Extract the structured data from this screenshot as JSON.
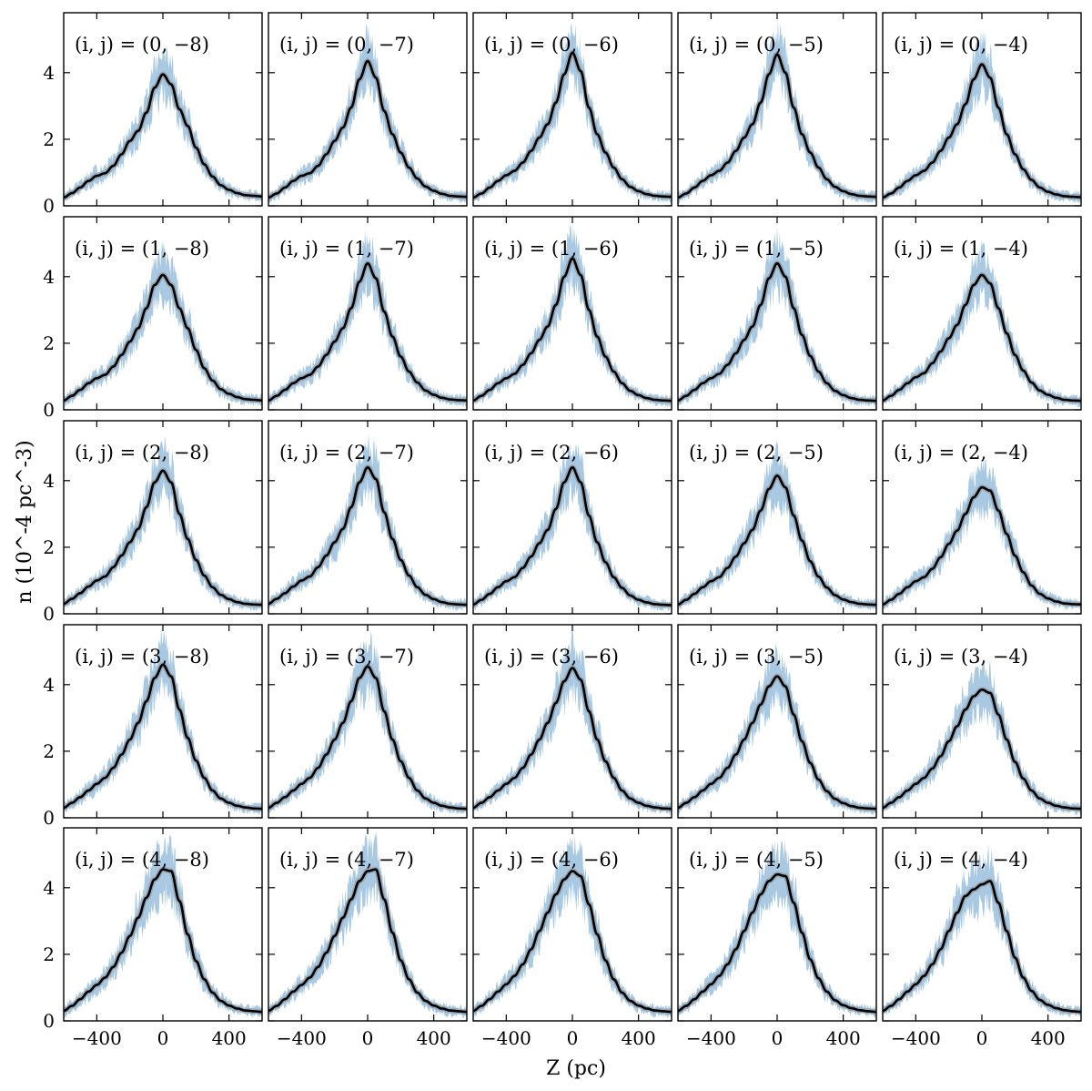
{
  "chart_data": {
    "type": "line",
    "layout": "5x5 grid of panels sharing axes",
    "xlabel": "Z (pc)",
    "ylabel": "n (10^-4 pc^-3)",
    "xlim": [
      -600,
      600
    ],
    "ylim": [
      0,
      5.8
    ],
    "xticks": [
      -400,
      0,
      400
    ],
    "yticks": [
      0,
      2,
      4
    ],
    "x_tick_labels": [
      "−400",
      "0",
      "400"
    ],
    "y_tick_labels": [
      "0",
      "2",
      "4"
    ],
    "colors": {
      "band": "#a9c9e3",
      "line": "#000000",
      "line_halo": "#7f7f7f"
    },
    "x": [
      -600,
      -550,
      -500,
      -450,
      -400,
      -350,
      -300,
      -250,
      -200,
      -150,
      -100,
      -50,
      0,
      50,
      100,
      150,
      200,
      250,
      300,
      350,
      400,
      450,
      500,
      550,
      600
    ],
    "panels": [
      {
        "label": "(i, j) = (0, −8)",
        "values": [
          0.25,
          0.38,
          0.55,
          0.75,
          0.9,
          0.98,
          1.2,
          1.55,
          1.95,
          2.25,
          2.8,
          3.55,
          3.95,
          3.65,
          2.9,
          2.4,
          1.75,
          1.25,
          0.88,
          0.62,
          0.48,
          0.38,
          0.32,
          0.3,
          0.28
        ]
      },
      {
        "label": "(i, j) = (0, −7)",
        "values": [
          0.25,
          0.37,
          0.55,
          0.75,
          0.9,
          0.98,
          1.2,
          1.55,
          1.95,
          2.35,
          2.95,
          3.8,
          4.35,
          3.85,
          2.85,
          2.15,
          1.6,
          1.15,
          0.82,
          0.58,
          0.45,
          0.36,
          0.3,
          0.28,
          0.27
        ]
      },
      {
        "label": "(i, j) = (0, −6)",
        "values": [
          0.25,
          0.37,
          0.55,
          0.75,
          0.92,
          1.05,
          1.3,
          1.65,
          2.05,
          2.45,
          3.1,
          3.95,
          4.6,
          4.05,
          2.95,
          2.15,
          1.6,
          1.15,
          0.8,
          0.57,
          0.44,
          0.35,
          0.3,
          0.28,
          0.27
        ]
      },
      {
        "label": "(i, j) = (0, −5)",
        "values": [
          0.25,
          0.37,
          0.55,
          0.75,
          0.92,
          1.05,
          1.3,
          1.65,
          2.05,
          2.45,
          3.1,
          3.95,
          4.55,
          4.0,
          2.95,
          2.15,
          1.6,
          1.15,
          0.8,
          0.57,
          0.44,
          0.35,
          0.3,
          0.28,
          0.27
        ]
      },
      {
        "label": "(i, j) = (0, −4)",
        "values": [
          0.25,
          0.37,
          0.55,
          0.75,
          0.92,
          1.05,
          1.3,
          1.65,
          2.05,
          2.45,
          3.05,
          3.8,
          4.25,
          3.85,
          2.95,
          2.15,
          1.55,
          1.1,
          0.78,
          0.55,
          0.42,
          0.34,
          0.29,
          0.27,
          0.26
        ]
      },
      {
        "label": "(i, j) = (1, −8)",
        "values": [
          0.28,
          0.42,
          0.6,
          0.8,
          0.95,
          1.05,
          1.3,
          1.65,
          2.05,
          2.45,
          3.05,
          3.75,
          4.05,
          3.75,
          3.05,
          2.45,
          1.8,
          1.25,
          0.88,
          0.62,
          0.48,
          0.38,
          0.32,
          0.3,
          0.28
        ]
      },
      {
        "label": "(i, j) = (1, −7)",
        "values": [
          0.28,
          0.42,
          0.6,
          0.8,
          0.95,
          1.05,
          1.3,
          1.65,
          2.05,
          2.45,
          3.05,
          3.85,
          4.4,
          3.95,
          2.95,
          2.2,
          1.6,
          1.15,
          0.82,
          0.58,
          0.45,
          0.36,
          0.31,
          0.29,
          0.28
        ]
      },
      {
        "label": "(i, j) = (1, −6)",
        "values": [
          0.28,
          0.42,
          0.6,
          0.8,
          0.95,
          1.08,
          1.35,
          1.7,
          2.1,
          2.5,
          3.15,
          4.0,
          4.55,
          4.05,
          3.0,
          2.2,
          1.6,
          1.15,
          0.8,
          0.57,
          0.44,
          0.35,
          0.3,
          0.28,
          0.27
        ]
      },
      {
        "label": "(i, j) = (1, −5)",
        "values": [
          0.28,
          0.42,
          0.6,
          0.8,
          0.95,
          1.08,
          1.35,
          1.7,
          2.1,
          2.5,
          3.15,
          3.95,
          4.4,
          4.0,
          3.05,
          2.25,
          1.62,
          1.15,
          0.8,
          0.57,
          0.44,
          0.35,
          0.3,
          0.28,
          0.27
        ]
      },
      {
        "label": "(i, j) = (1, −4)",
        "values": [
          0.28,
          0.42,
          0.6,
          0.8,
          0.98,
          1.1,
          1.4,
          1.75,
          2.15,
          2.55,
          3.15,
          3.75,
          4.05,
          3.8,
          3.05,
          2.3,
          1.65,
          1.18,
          0.82,
          0.58,
          0.45,
          0.36,
          0.3,
          0.28,
          0.27
        ]
      },
      {
        "label": "(i, j) = (2, −8)",
        "values": [
          0.3,
          0.45,
          0.62,
          0.82,
          1.0,
          1.12,
          1.4,
          1.75,
          2.15,
          2.55,
          3.2,
          3.95,
          4.3,
          3.95,
          3.0,
          2.25,
          1.62,
          1.15,
          0.8,
          0.57,
          0.44,
          0.35,
          0.3,
          0.28,
          0.27
        ]
      },
      {
        "label": "(i, j) = (2, −7)",
        "values": [
          0.3,
          0.45,
          0.62,
          0.82,
          1.0,
          1.12,
          1.4,
          1.75,
          2.15,
          2.55,
          3.2,
          3.95,
          4.4,
          4.05,
          3.05,
          2.25,
          1.62,
          1.15,
          0.8,
          0.57,
          0.44,
          0.35,
          0.3,
          0.28,
          0.27
        ]
      },
      {
        "label": "(i, j) = (2, −6)",
        "values": [
          0.28,
          0.42,
          0.6,
          0.8,
          0.98,
          1.1,
          1.38,
          1.72,
          2.12,
          2.52,
          3.15,
          3.95,
          4.4,
          3.95,
          2.95,
          2.15,
          1.55,
          1.1,
          0.78,
          0.55,
          0.42,
          0.34,
          0.29,
          0.27,
          0.26
        ]
      },
      {
        "label": "(i, j) = (2, −5)",
        "values": [
          0.28,
          0.42,
          0.6,
          0.8,
          0.98,
          1.1,
          1.38,
          1.72,
          2.12,
          2.52,
          3.1,
          3.75,
          4.15,
          3.8,
          2.95,
          2.2,
          1.58,
          1.12,
          0.79,
          0.56,
          0.43,
          0.35,
          0.3,
          0.28,
          0.27
        ]
      },
      {
        "label": "(i, j) = (2, −4)",
        "values": [
          0.28,
          0.42,
          0.6,
          0.8,
          0.98,
          1.1,
          1.35,
          1.7,
          2.1,
          2.5,
          3.0,
          3.5,
          3.8,
          3.7,
          3.1,
          2.4,
          1.75,
          1.25,
          0.85,
          0.6,
          0.46,
          0.37,
          0.31,
          0.29,
          0.28
        ]
      },
      {
        "label": "(i, j) = (3, −8)",
        "values": [
          0.3,
          0.45,
          0.62,
          0.82,
          1.02,
          1.2,
          1.5,
          1.9,
          2.35,
          2.85,
          3.5,
          4.2,
          4.6,
          4.25,
          3.25,
          2.4,
          1.72,
          1.2,
          0.82,
          0.58,
          0.45,
          0.36,
          0.31,
          0.28,
          0.27
        ]
      },
      {
        "label": "(i, j) = (3, −7)",
        "values": [
          0.3,
          0.45,
          0.62,
          0.82,
          1.02,
          1.2,
          1.5,
          1.9,
          2.35,
          2.85,
          3.5,
          4.2,
          4.55,
          4.2,
          3.2,
          2.35,
          1.7,
          1.2,
          0.82,
          0.58,
          0.45,
          0.36,
          0.31,
          0.28,
          0.27
        ]
      },
      {
        "label": "(i, j) = (3, −6)",
        "values": [
          0.3,
          0.45,
          0.62,
          0.82,
          1.02,
          1.2,
          1.5,
          1.9,
          2.35,
          2.85,
          3.45,
          4.1,
          4.5,
          4.15,
          3.2,
          2.35,
          1.7,
          1.2,
          0.82,
          0.58,
          0.45,
          0.36,
          0.31,
          0.28,
          0.27
        ]
      },
      {
        "label": "(i, j) = (3, −5)",
        "values": [
          0.3,
          0.45,
          0.62,
          0.82,
          1.02,
          1.2,
          1.5,
          1.9,
          2.35,
          2.85,
          3.4,
          3.95,
          4.25,
          3.95,
          3.1,
          2.3,
          1.65,
          1.15,
          0.8,
          0.57,
          0.44,
          0.35,
          0.3,
          0.28,
          0.27
        ]
      },
      {
        "label": "(i, j) = (3, −4)",
        "values": [
          0.3,
          0.45,
          0.62,
          0.82,
          1.02,
          1.2,
          1.48,
          1.85,
          2.3,
          2.75,
          3.25,
          3.65,
          3.85,
          3.75,
          3.1,
          2.35,
          1.68,
          1.18,
          0.82,
          0.58,
          0.45,
          0.36,
          0.31,
          0.28,
          0.27
        ]
      },
      {
        "label": "(i, j) = (4, −8)",
        "values": [
          0.3,
          0.45,
          0.65,
          0.88,
          1.08,
          1.3,
          1.62,
          2.05,
          2.55,
          3.1,
          3.7,
          4.25,
          4.55,
          4.5,
          3.6,
          2.6,
          1.8,
          1.25,
          0.85,
          0.6,
          0.46,
          0.37,
          0.31,
          0.29,
          0.27
        ]
      },
      {
        "label": "(i, j) = (4, −7)",
        "values": [
          0.3,
          0.45,
          0.65,
          0.88,
          1.08,
          1.3,
          1.62,
          2.05,
          2.55,
          3.1,
          3.65,
          4.2,
          4.5,
          4.55,
          3.65,
          2.65,
          1.82,
          1.25,
          0.85,
          0.6,
          0.46,
          0.37,
          0.31,
          0.29,
          0.27
        ]
      },
      {
        "label": "(i, j) = (4, −6)",
        "values": [
          0.3,
          0.45,
          0.65,
          0.88,
          1.1,
          1.35,
          1.7,
          2.15,
          2.7,
          3.25,
          3.8,
          4.25,
          4.5,
          4.35,
          3.5,
          2.6,
          1.82,
          1.25,
          0.85,
          0.6,
          0.46,
          0.37,
          0.31,
          0.29,
          0.27
        ]
      },
      {
        "label": "(i, j) = (4, −5)",
        "values": [
          0.3,
          0.45,
          0.65,
          0.88,
          1.1,
          1.35,
          1.7,
          2.15,
          2.7,
          3.25,
          3.8,
          4.2,
          4.4,
          4.35,
          3.55,
          2.65,
          1.85,
          1.28,
          0.88,
          0.62,
          0.47,
          0.38,
          0.32,
          0.29,
          0.27
        ]
      },
      {
        "label": "(i, j) = (4, −4)",
        "values": [
          0.3,
          0.45,
          0.65,
          0.88,
          1.1,
          1.35,
          1.7,
          2.15,
          2.7,
          3.25,
          3.75,
          3.95,
          4.1,
          4.2,
          3.55,
          2.7,
          1.9,
          1.3,
          0.9,
          0.63,
          0.48,
          0.38,
          0.32,
          0.29,
          0.27
        ]
      }
    ]
  }
}
